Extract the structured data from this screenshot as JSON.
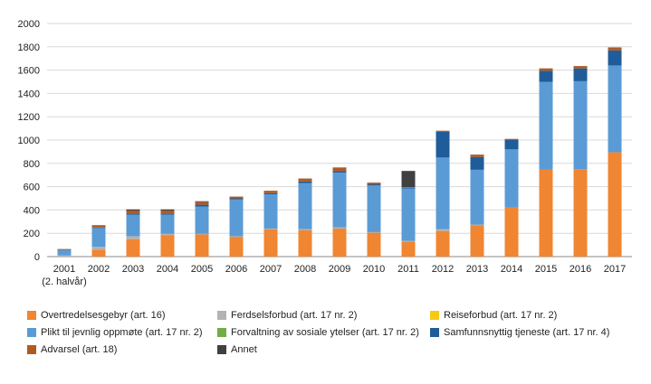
{
  "chart_data": {
    "type": "bar",
    "stacked": true,
    "categories": [
      "2001",
      "2002",
      "2003",
      "2004",
      "2005",
      "2006",
      "2007",
      "2008",
      "2009",
      "2010",
      "2011",
      "2012",
      "2013",
      "2014",
      "2015",
      "2016",
      "2017"
    ],
    "category_sublabels": [
      "(2. halvår)",
      "",
      "",
      "",
      "",
      "",
      "",
      "",
      "",
      "",
      "",
      "",
      "",
      "",
      "",
      "",
      ""
    ],
    "ylim": [
      0,
      2000
    ],
    "yticks": [
      0,
      200,
      400,
      600,
      800,
      1000,
      1200,
      1400,
      1600,
      1800,
      2000
    ],
    "title": "",
    "xlabel": "",
    "ylabel": "",
    "grid": true,
    "legend_position": "bottom",
    "series": [
      {
        "name": "Overtredelsesgebyr (art. 16)",
        "color": "#f08532",
        "values": [
          0,
          60,
          150,
          185,
          190,
          170,
          235,
          225,
          240,
          205,
          130,
          220,
          270,
          420,
          745,
          750,
          895
        ]
      },
      {
        "name": "Ferdselsforbud (art. 17 nr. 2)",
        "color": "#b3b3b3",
        "values": [
          10,
          25,
          25,
          10,
          5,
          5,
          5,
          10,
          10,
          5,
          5,
          15,
          5,
          0,
          0,
          0,
          0
        ]
      },
      {
        "name": "Reiseforbud (art. 17 nr. 2)",
        "color": "#f7c917",
        "values": [
          0,
          0,
          0,
          0,
          0,
          0,
          0,
          0,
          0,
          0,
          0,
          0,
          0,
          0,
          0,
          0,
          0
        ]
      },
      {
        "name": "Plikt til jevnlig oppmøte (art. 17 nr. 2)",
        "color": "#5b9bd5",
        "values": [
          45,
          160,
          185,
          165,
          235,
          315,
          295,
          395,
          470,
          400,
          450,
          615,
          470,
          500,
          755,
          755,
          745
        ]
      },
      {
        "name": "Forvaltning av sosiale ytelser (art. 17 nr. 2)",
        "color": "#70ad47",
        "values": [
          0,
          0,
          0,
          0,
          0,
          0,
          0,
          0,
          0,
          0,
          0,
          0,
          0,
          0,
          0,
          0,
          0
        ]
      },
      {
        "name": "Samfunnsnyttig tjeneste (art. 17 nr. 4)",
        "color": "#1f5c99",
        "values": [
          5,
          5,
          10,
          10,
          15,
          10,
          10,
          15,
          15,
          10,
          5,
          220,
          110,
          80,
          95,
          110,
          130
        ]
      },
      {
        "name": "Advarsel (art. 18)",
        "color": "#b05a23",
        "values": [
          5,
          20,
          25,
          25,
          25,
          15,
          20,
          25,
          30,
          15,
          5,
          10,
          20,
          10,
          20,
          20,
          25
        ]
      },
      {
        "name": "Annet",
        "color": "#404040",
        "values": [
          0,
          0,
          10,
          10,
          5,
          0,
          0,
          0,
          0,
          0,
          140,
          0,
          0,
          0,
          0,
          0,
          0
        ]
      }
    ]
  }
}
